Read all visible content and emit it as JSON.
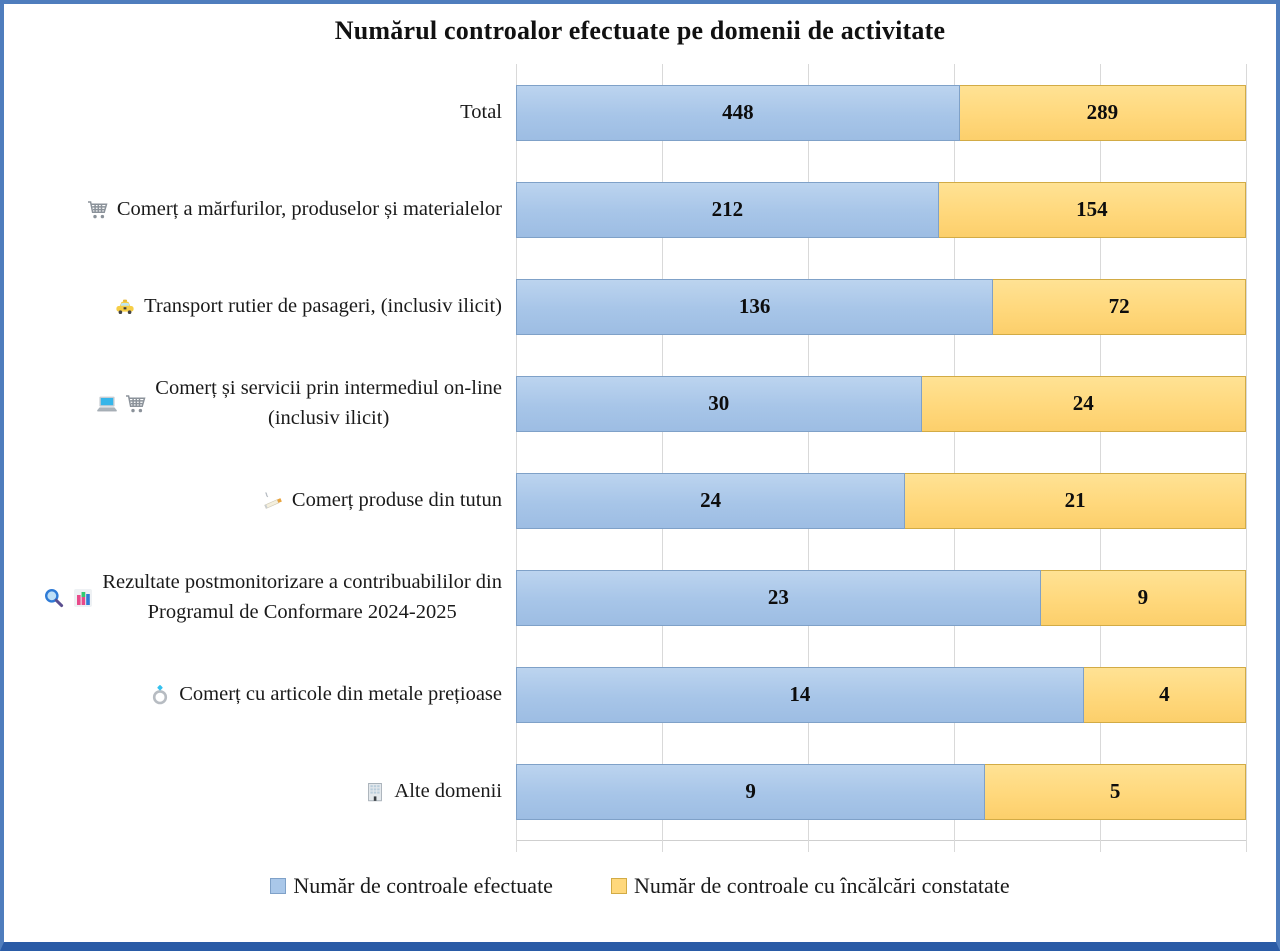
{
  "title": "Numărul controalor efectuate pe domenii de activitate",
  "colors": {
    "bar_blue": "#A9C7E9",
    "bar_blue_border": "#7FA1C8",
    "bar_yellow": "#FFD87C",
    "bar_yellow_border": "#D2AB45",
    "gridline": "#D9D9D9",
    "frame_border": "#4F7DBD",
    "frame_border_bottom": "#2A5BA6",
    "value_text": "#0D0D0D"
  },
  "chart_data": {
    "type": "bar",
    "orientation": "horizontal",
    "stacked": "100%",
    "title": "Numărul controalor efectuate pe domenii de activitate",
    "legend_position": "bottom",
    "grid": true,
    "gridlines_percent": [
      0,
      20,
      40,
      60,
      80,
      100
    ],
    "categories": [
      "Total",
      "Comerț a mărfurilor, produselor și materialelor",
      "Transport rutier de pasageri, (inclusiv ilicit)",
      "Comerț și servicii prin intermediul on-line\n(inclusiv ilicit)",
      "Comerț produse din tutun",
      "Rezultate postmonitorizare a contribuabililor din\nProgramul de Conformare 2024-2025",
      "Comerț cu articole din metale prețioase",
      "Alte domenii"
    ],
    "category_icons": [
      [],
      [
        "shopping-cart"
      ],
      [
        "taxi"
      ],
      [
        "laptop",
        "shopping-cart"
      ],
      [
        "cigarette"
      ],
      [
        "magnifier",
        "bar-chart"
      ],
      [
        "ring"
      ],
      [
        "office-building"
      ]
    ],
    "series": [
      {
        "name": "Număr de controale efectuate",
        "color": "#A9C7E9",
        "values": [
          448,
          212,
          136,
          30,
          24,
          23,
          14,
          9
        ]
      },
      {
        "name": "Număr de controale cu încălcări constatate",
        "color": "#FFD87C",
        "values": [
          289,
          154,
          72,
          24,
          21,
          9,
          4,
          5
        ]
      }
    ]
  }
}
